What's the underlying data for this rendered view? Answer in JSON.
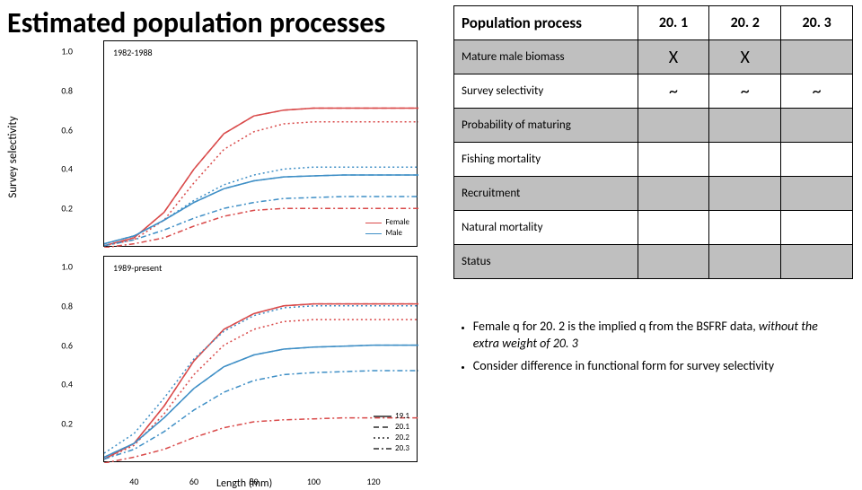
{
  "title": "Estimated population processes",
  "chart": {
    "y_axis_label": "Survey selectivity",
    "x_axis_label": "Length (mm)",
    "panels": [
      {
        "label": "1982-1988"
      },
      {
        "label": "1989-present"
      }
    ],
    "x_ticks": [
      40,
      60,
      80,
      100,
      120
    ],
    "xlim": [
      30,
      135
    ],
    "y_ticks": [
      "0.2",
      "0.4",
      "0.6",
      "0.8",
      "1.0"
    ],
    "ylim": [
      0,
      1.05
    ],
    "colors": {
      "female": "#d94a4a",
      "male": "#3f8fc6",
      "border": "#000000",
      "background": "#ffffff"
    },
    "sex_legend": [
      {
        "label": "Female",
        "color": "#d94a4a"
      },
      {
        "label": "Male",
        "color": "#3f8fc6"
      }
    ],
    "model_legend": [
      {
        "label": "19.1",
        "dash": "solid",
        "color": "#000"
      },
      {
        "label": "20.1",
        "dash": "6,4",
        "color": "#000"
      },
      {
        "label": "20.2",
        "dash": "2,3",
        "color": "#000"
      },
      {
        "label": "20.3",
        "dash": "6,3,2,3",
        "color": "#000"
      }
    ],
    "line_width": 1.5,
    "series_panel1": {
      "female": {
        "19.1": [
          0.01,
          0.05,
          0.18,
          0.4,
          0.58,
          0.67,
          0.7,
          0.71,
          0.71,
          0.71,
          0.71
        ],
        "20.1": [
          0.01,
          0.05,
          0.18,
          0.4,
          0.58,
          0.67,
          0.7,
          0.71,
          0.71,
          0.71,
          0.71
        ],
        "20.2": [
          0.01,
          0.04,
          0.14,
          0.33,
          0.5,
          0.59,
          0.63,
          0.64,
          0.64,
          0.64,
          0.64
        ],
        "20.3": [
          0.0,
          0.02,
          0.05,
          0.11,
          0.16,
          0.19,
          0.2,
          0.2,
          0.2,
          0.2,
          0.2
        ]
      },
      "male": {
        "19.1": [
          0.02,
          0.06,
          0.14,
          0.23,
          0.3,
          0.34,
          0.36,
          0.365,
          0.37,
          0.37,
          0.37
        ],
        "20.1": [
          0.02,
          0.06,
          0.14,
          0.23,
          0.3,
          0.34,
          0.36,
          0.365,
          0.37,
          0.37,
          0.37
        ],
        "20.2": [
          0.02,
          0.06,
          0.14,
          0.24,
          0.32,
          0.37,
          0.4,
          0.41,
          0.41,
          0.41,
          0.41
        ],
        "20.3": [
          0.01,
          0.04,
          0.09,
          0.15,
          0.2,
          0.23,
          0.25,
          0.255,
          0.26,
          0.26,
          0.26
        ]
      },
      "x": [
        30,
        40,
        50,
        60,
        70,
        80,
        90,
        100,
        110,
        120,
        135
      ]
    },
    "series_panel2": {
      "female": {
        "19.1": [
          0.02,
          0.1,
          0.29,
          0.52,
          0.68,
          0.76,
          0.8,
          0.81,
          0.81,
          0.81,
          0.81
        ],
        "20.1": [
          0.02,
          0.1,
          0.29,
          0.52,
          0.68,
          0.76,
          0.8,
          0.81,
          0.81,
          0.81,
          0.81
        ],
        "20.2": [
          0.02,
          0.09,
          0.25,
          0.45,
          0.6,
          0.68,
          0.72,
          0.73,
          0.73,
          0.73,
          0.73
        ],
        "20.3": [
          0.0,
          0.03,
          0.07,
          0.13,
          0.18,
          0.21,
          0.22,
          0.225,
          0.23,
          0.23,
          0.23
        ]
      },
      "male": {
        "19.1": [
          0.03,
          0.1,
          0.23,
          0.38,
          0.49,
          0.55,
          0.58,
          0.59,
          0.595,
          0.6,
          0.6
        ],
        "20.1": [
          0.03,
          0.1,
          0.23,
          0.38,
          0.49,
          0.55,
          0.58,
          0.59,
          0.595,
          0.6,
          0.6
        ],
        "20.2": [
          0.05,
          0.15,
          0.33,
          0.53,
          0.67,
          0.75,
          0.79,
          0.8,
          0.8,
          0.8,
          0.8
        ],
        "20.3": [
          0.02,
          0.07,
          0.16,
          0.27,
          0.36,
          0.42,
          0.45,
          0.46,
          0.465,
          0.47,
          0.47
        ]
      },
      "x": [
        30,
        40,
        50,
        60,
        70,
        80,
        90,
        100,
        110,
        120,
        135
      ]
    }
  },
  "table": {
    "header": [
      "Population process",
      "20. 1",
      "20. 2",
      "20. 3"
    ],
    "rows": [
      {
        "label": "Mature male biomass",
        "vals": [
          "X",
          "X",
          ""
        ],
        "gray": true
      },
      {
        "label": "Survey selectivity",
        "vals": [
          "~",
          "~",
          "~"
        ],
        "gray": false
      },
      {
        "label": "Probability of maturing",
        "vals": [
          "",
          "",
          ""
        ],
        "gray": true
      },
      {
        "label": "Fishing mortality",
        "vals": [
          "",
          "",
          ""
        ],
        "gray": false
      },
      {
        "label": "Recruitment",
        "vals": [
          "",
          "",
          ""
        ],
        "gray": true
      },
      {
        "label": "Natural mortality",
        "vals": [
          "",
          "",
          ""
        ],
        "gray": false
      },
      {
        "label": "Status",
        "vals": [
          "",
          "",
          ""
        ],
        "gray": true
      }
    ]
  },
  "bullets": [
    {
      "pre": "Female q for 20. 2 is the implied q from the BSFRF data, ",
      "ital": "without the extra weight of 20. 3",
      "post": ""
    },
    {
      "pre": "Consider difference in functional form for survey selectivity",
      "ital": "",
      "post": ""
    }
  ]
}
